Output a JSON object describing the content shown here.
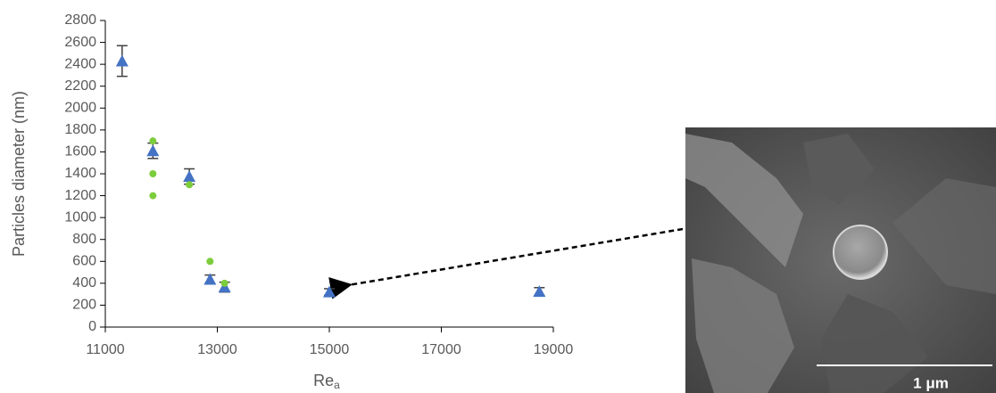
{
  "chart_data": {
    "type": "scatter",
    "x_label": "Re",
    "x_label_subscript": "a",
    "y_label": "Particles diameter (nm)",
    "xlim": [
      11000,
      19000
    ],
    "xticks": [
      11000,
      13000,
      15000,
      17000,
      19000
    ],
    "ylim": [
      0,
      2800
    ],
    "yticks": [
      0,
      200,
      400,
      600,
      800,
      1000,
      1200,
      1400,
      1600,
      1800,
      2000,
      2200,
      2400,
      2600,
      2800
    ],
    "series": [
      {
        "marker": "triangle",
        "color": "#4472c4",
        "error_color": "#404040",
        "x": [
          11300,
          11850,
          12500,
          12870,
          13130,
          15000,
          18750
        ],
        "values": [
          2430,
          1610,
          1375,
          435,
          365,
          320,
          325
        ],
        "errors": [
          140,
          70,
          70,
          40,
          45,
          30,
          35
        ]
      },
      {
        "marker": "circle",
        "color": "#7ccd3c",
        "x": [
          11850,
          11850,
          11850,
          12500,
          12870,
          13130
        ],
        "values": [
          1700,
          1400,
          1200,
          1300,
          600,
          400
        ]
      }
    ]
  },
  "inset": {
    "scale_bar_label": "1 μm"
  }
}
